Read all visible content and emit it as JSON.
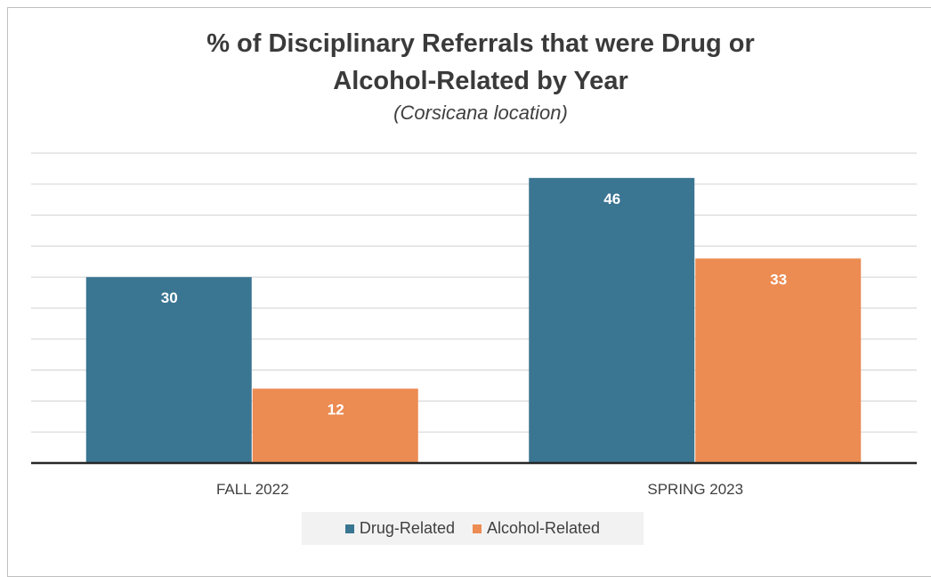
{
  "chart_data": {
    "type": "bar",
    "title_lines": [
      "% of Disciplinary Referrals that were Drug or",
      "Alcohol-Related by Year"
    ],
    "subtitle": "(Corsicana location)",
    "xlabel": "",
    "ylabel": "",
    "categories": [
      "FALL 2022",
      "SPRING 2023"
    ],
    "series": [
      {
        "name": "Drug-Related",
        "values": [
          30,
          46
        ],
        "color": "#3a7592"
      },
      {
        "name": "Alcohol-Related",
        "values": [
          12,
          33
        ],
        "color": "#ec8b52"
      }
    ],
    "ylim": [
      0,
      50
    ],
    "grid": true,
    "legend_position": "bottom"
  }
}
